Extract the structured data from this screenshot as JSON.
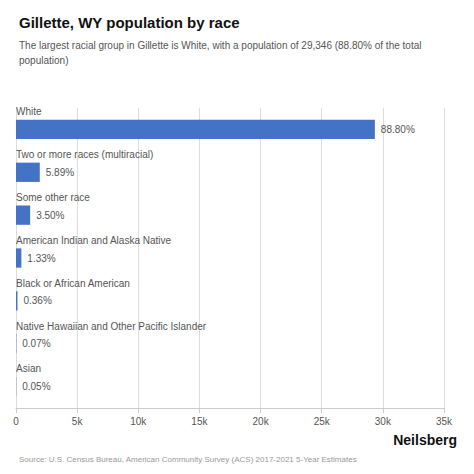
{
  "chart_data": {
    "type": "bar",
    "orientation": "horizontal",
    "title": "Gillette, WY population by race",
    "subtitle": "The largest racial group in Gillette is White, with a population of 29,346 (88.80% of the total\npopulation)",
    "categories": [
      "White",
      "Two or more races (multiracial)",
      "Some other race",
      "American Indian and Alaska Native",
      "Black or African American",
      "Native Hawaiian and Other Pacific Islander",
      "Asian"
    ],
    "values": [
      29346,
      1945,
      1156,
      439,
      119,
      23,
      17
    ],
    "percentages": [
      {
        "value": 88.8,
        "label": "88.80%"
      },
      {
        "value": 5.89,
        "label": "5.89%"
      },
      {
        "value": 3.5,
        "label": "3.50%"
      },
      {
        "value": 1.33,
        "label": "1.33%"
      },
      {
        "value": 0.36,
        "label": "0.36%"
      },
      {
        "value": 0.07,
        "label": "0.07%"
      },
      {
        "value": 0.05,
        "label": "0.05%"
      }
    ],
    "color": "#4472C4",
    "xlim": [
      0,
      35000
    ],
    "xticks": [
      0,
      {
        "value": 5000,
        "label": "5k"
      },
      {
        "value": 10000,
        "label": "10k"
      },
      {
        "value": 15000,
        "label": "15k"
      },
      {
        "value": 20000,
        "label": "20k"
      },
      {
        "value": 25000,
        "label": "25k"
      },
      {
        "value": 30000,
        "label": "30k"
      },
      {
        "value": 35000,
        "label": "35k"
      }
    ],
    "grid": true,
    "tick_labels": "x",
    "source": "Source: U.S. Census Bureau, American Community Survey (ACS) 2017-2021 5-Year Estimates",
    "brand": "Neilsberg"
  }
}
